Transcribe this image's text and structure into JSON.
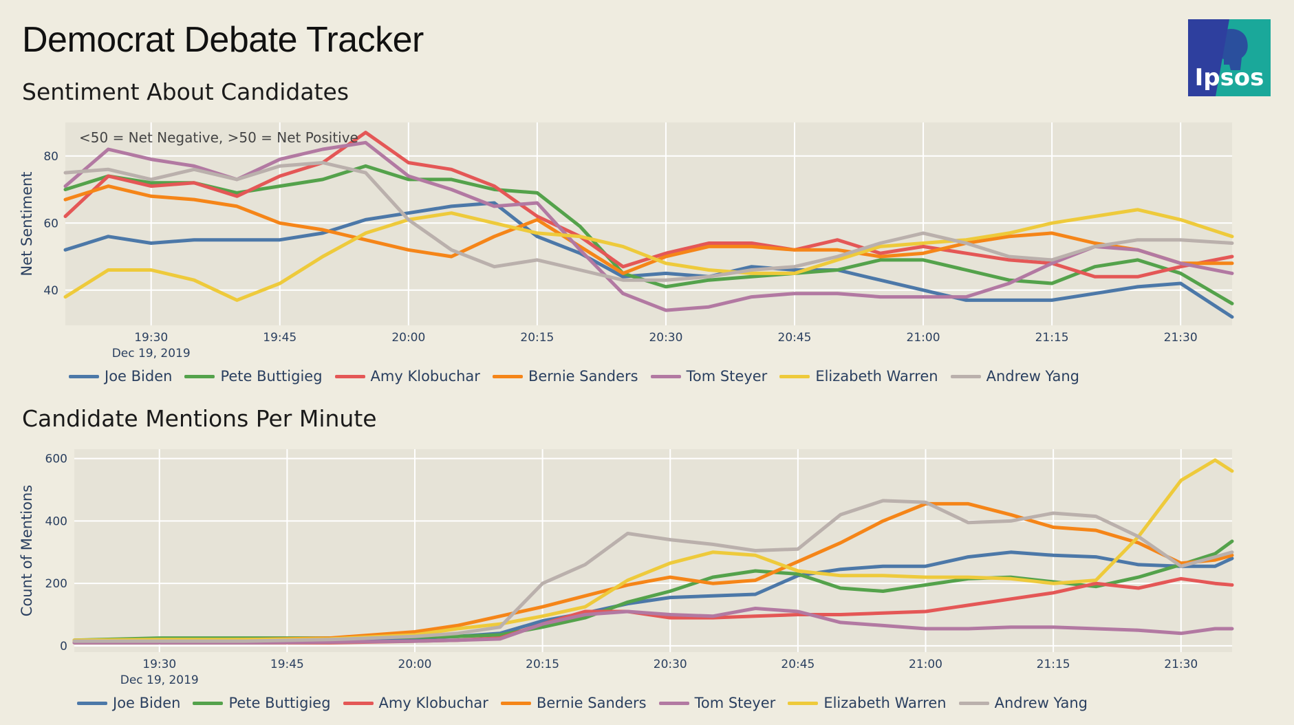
{
  "page": {
    "title": "Democrat Debate Tracker",
    "section1_title": "Sentiment About Candidates",
    "section2_title": "Candidate Mentions Per Minute",
    "logo_text": "Ipsos"
  },
  "colors": {
    "background": "#efece0",
    "plot_background": "#e6e3d7",
    "grid": "#ffffff",
    "logo_blue": "#2e3f9e",
    "logo_teal": "#1aa89a"
  },
  "chart_data": [
    {
      "type": "line",
      "title": "Sentiment About Candidates",
      "ylabel": "Net Sentiment",
      "xlabel": "",
      "annotation": "<50 = Net Negative, >50 = Net Positive",
      "date_label": "Dec 19, 2019",
      "x_ticks": [
        "19:30",
        "19:45",
        "20:00",
        "20:15",
        "20:30",
        "20:45",
        "21:00",
        "21:15",
        "21:30"
      ],
      "x_tick_minutes": [
        1170,
        1185,
        1200,
        1215,
        1230,
        1245,
        1260,
        1275,
        1290
      ],
      "xlim": [
        1160,
        1296
      ],
      "y_ticks": [
        40,
        60,
        80
      ],
      "ylim": [
        29.5,
        90
      ],
      "legend_position": "bottom-left",
      "x": [
        1160,
        1165,
        1170,
        1175,
        1180,
        1185,
        1190,
        1195,
        1200,
        1205,
        1210,
        1215,
        1220,
        1225,
        1230,
        1235,
        1240,
        1245,
        1250,
        1255,
        1260,
        1265,
        1270,
        1275,
        1280,
        1285,
        1290,
        1296
      ],
      "series": [
        {
          "name": "Joe Biden",
          "color": "#4c78a8",
          "values": [
            52,
            56,
            54,
            55,
            55,
            55,
            57,
            61,
            63,
            65,
            66,
            56,
            51,
            44,
            45,
            44,
            47,
            46,
            46,
            43,
            40,
            37,
            37,
            37,
            39,
            41,
            42,
            32
          ]
        },
        {
          "name": "Pete Buttigieg",
          "color": "#54a24b",
          "values": [
            70,
            74,
            72,
            72,
            69,
            71,
            73,
            77,
            73,
            73,
            70,
            69,
            59,
            45,
            41,
            43,
            44,
            45,
            46,
            49,
            49,
            46,
            43,
            42,
            47,
            49,
            45,
            36
          ]
        },
        {
          "name": "Amy Klobuchar",
          "color": "#e45756",
          "values": [
            62,
            74,
            71,
            72,
            68,
            74,
            78,
            87,
            78,
            76,
            71,
            62,
            56,
            47,
            51,
            54,
            54,
            52,
            55,
            51,
            53,
            51,
            49,
            48,
            44,
            44,
            47,
            50
          ]
        },
        {
          "name": "Bernie Sanders",
          "color": "#f58518",
          "values": [
            67,
            71,
            68,
            67,
            65,
            60,
            58,
            55,
            52,
            50,
            56,
            61,
            53,
            45,
            50,
            53,
            53,
            52,
            52,
            50,
            51,
            54,
            56,
            57,
            54,
            52,
            48,
            48
          ]
        },
        {
          "name": "Tom Steyer",
          "color": "#b279a2",
          "values": [
            71,
            82,
            79,
            77,
            73,
            79,
            82,
            84,
            74,
            70,
            65,
            66,
            52,
            39,
            34,
            35,
            38,
            39,
            39,
            38,
            38,
            38,
            42,
            48,
            53,
            52,
            48,
            45
          ]
        },
        {
          "name": "Elizabeth Warren",
          "color": "#eeca3b",
          "values": [
            38,
            46,
            46,
            43,
            37,
            42,
            50,
            57,
            61,
            63,
            60,
            57,
            56,
            53,
            48,
            46,
            45,
            45,
            49,
            53,
            54,
            55,
            57,
            60,
            62,
            64,
            61,
            56
          ]
        },
        {
          "name": "Andrew Yang",
          "color": "#bab0ac",
          "values": [
            75,
            76,
            73,
            76,
            73,
            77,
            78,
            75,
            61,
            52,
            47,
            49,
            46,
            43,
            43,
            44,
            46,
            47,
            50,
            54,
            57,
            54,
            50,
            49,
            53,
            55,
            55,
            54
          ]
        }
      ]
    },
    {
      "type": "line",
      "title": "Candidate Mentions Per Minute",
      "ylabel": "Count of Mentions",
      "xlabel": "",
      "date_label": "Dec 19, 2019",
      "x_ticks": [
        "19:30",
        "19:45",
        "20:00",
        "20:15",
        "20:30",
        "20:45",
        "21:00",
        "21:15",
        "21:30"
      ],
      "x_tick_minutes": [
        1170,
        1185,
        1200,
        1215,
        1230,
        1245,
        1260,
        1275,
        1290
      ],
      "xlim": [
        1160,
        1296
      ],
      "y_ticks": [
        0,
        200,
        400,
        600
      ],
      "ylim": [
        -20,
        630
      ],
      "legend_position": "bottom-left",
      "x": [
        1160,
        1170,
        1180,
        1190,
        1200,
        1205,
        1210,
        1215,
        1220,
        1225,
        1230,
        1235,
        1240,
        1245,
        1250,
        1255,
        1260,
        1265,
        1270,
        1275,
        1280,
        1285,
        1290,
        1294,
        1296
      ],
      "series": [
        {
          "name": "Joe Biden",
          "color": "#4c78a8",
          "values": [
            18,
            20,
            20,
            20,
            25,
            30,
            40,
            80,
            105,
            135,
            155,
            160,
            165,
            225,
            245,
            255,
            255,
            285,
            300,
            290,
            285,
            260,
            255,
            255,
            280
          ]
        },
        {
          "name": "Pete Buttigieg",
          "color": "#54a24b",
          "values": [
            18,
            25,
            25,
            25,
            28,
            30,
            35,
            60,
            90,
            140,
            175,
            220,
            240,
            230,
            185,
            175,
            195,
            215,
            220,
            205,
            190,
            220,
            260,
            295,
            335
          ]
        },
        {
          "name": "Amy Klobuchar",
          "color": "#e45756",
          "values": [
            10,
            10,
            10,
            10,
            15,
            18,
            25,
            70,
            110,
            110,
            90,
            90,
            95,
            100,
            100,
            105,
            110,
            130,
            150,
            170,
            200,
            185,
            215,
            200,
            195
          ]
        },
        {
          "name": "Bernie Sanders",
          "color": "#f58518",
          "values": [
            15,
            18,
            20,
            25,
            45,
            65,
            95,
            125,
            160,
            195,
            220,
            200,
            210,
            270,
            330,
            400,
            455,
            455,
            420,
            380,
            370,
            330,
            265,
            275,
            290
          ]
        },
        {
          "name": "Tom Steyer",
          "color": "#b279a2",
          "values": [
            10,
            10,
            10,
            12,
            15,
            18,
            22,
            70,
            100,
            110,
            100,
            95,
            120,
            110,
            75,
            65,
            55,
            55,
            60,
            60,
            55,
            50,
            40,
            55,
            55
          ]
        },
        {
          "name": "Elizabeth Warren",
          "color": "#eeca3b",
          "values": [
            18,
            20,
            20,
            22,
            35,
            55,
            70,
            95,
            125,
            210,
            265,
            300,
            290,
            240,
            225,
            225,
            220,
            220,
            215,
            200,
            210,
            350,
            530,
            595,
            560
          ]
        },
        {
          "name": "Andrew Yang",
          "color": "#bab0ac",
          "values": [
            15,
            15,
            15,
            20,
            30,
            40,
            60,
            200,
            260,
            360,
            340,
            325,
            305,
            310,
            420,
            465,
            460,
            395,
            400,
            425,
            415,
            350,
            255,
            285,
            300
          ]
        }
      ]
    }
  ]
}
